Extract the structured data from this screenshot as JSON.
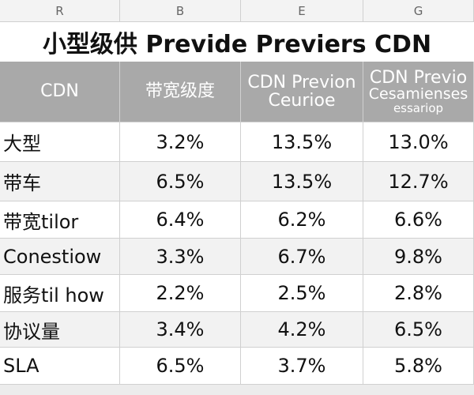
{
  "column_letters": [
    "R",
    "B",
    "E",
    "G"
  ],
  "title": "小型级供 Previde Previers CDN",
  "table": {
    "header": [
      [
        "CDN"
      ],
      [
        "带宽级度"
      ],
      [
        "CDN Previon",
        "Ceurioe"
      ],
      [
        "CDN Previo",
        "Cesamienses",
        "essariop"
      ]
    ],
    "rows": [
      [
        "大型",
        "3.2%",
        "13.5%",
        "13.0%"
      ],
      [
        "带车",
        "6.5%",
        "13.5%",
        "12.7%"
      ],
      [
        "带宽tilor",
        "6.4%",
        "6.2%",
        "6.6%"
      ],
      [
        "Conestiow",
        "3.3%",
        "6.7%",
        "9.8%"
      ],
      [
        "服务til how",
        "2.2%",
        "2.5%",
        "2.8%"
      ],
      [
        "协议量",
        "3.4%",
        "4.2%",
        "6.5%"
      ],
      [
        "SLA",
        "6.5%",
        "3.7%",
        "5.8%"
      ]
    ]
  }
}
